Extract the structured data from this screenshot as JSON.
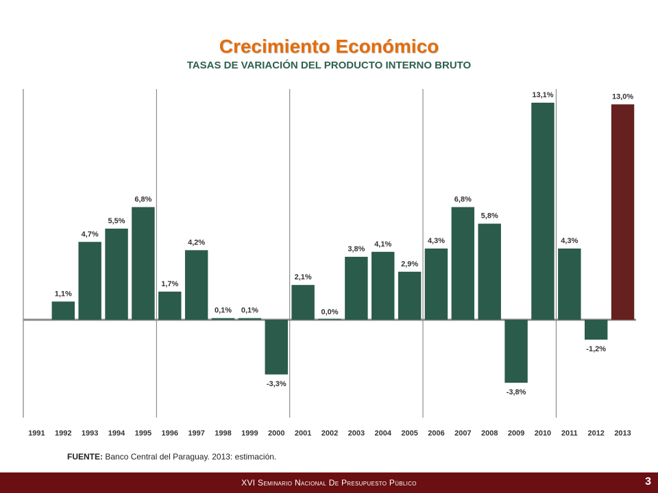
{
  "header": {
    "title": "Crecimiento Económico",
    "subtitle": "TASAS DE VARIACIÓN DEL PRODUCTO INTERNO BRUTO"
  },
  "source": {
    "label": "FUENTE:",
    "text": "Banco Central del Paraguay. 2013: estimación."
  },
  "footer": {
    "text": "XVI Seminario Nacional De Presupuesto Público",
    "page_number": "3"
  },
  "colors": {
    "bar": "#2b5b4b",
    "bar_estimate": "#65201f",
    "title": "#e46c0a",
    "subtitle": "#2e5f4e",
    "footer_bg": "#6b0f12"
  },
  "chart_data": {
    "type": "bar",
    "categories": [
      "1991",
      "1992",
      "1993",
      "1994",
      "1995",
      "1996",
      "1997",
      "1998",
      "1999",
      "2000",
      "2001",
      "2002",
      "2003",
      "2004",
      "2005",
      "2006",
      "2007",
      "2008",
      "2009",
      "2010",
      "2011",
      "2012",
      "2013"
    ],
    "values": [
      null,
      1.1,
      4.7,
      5.5,
      6.8,
      1.7,
      4.2,
      0.1,
      0.1,
      -3.3,
      2.1,
      0.0,
      3.8,
      4.1,
      2.9,
      4.3,
      6.8,
      5.8,
      -3.8,
      13.1,
      4.3,
      -1.2,
      13.0
    ],
    "labels": [
      "",
      "1,1%",
      "4,7%",
      "5,5%",
      "6,8%",
      "1,7%",
      "4,2%",
      "0,1%",
      "0,1%",
      "-3,3%",
      "2,1%",
      "0,0%",
      "3,8%",
      "4,1%",
      "2,9%",
      "4,3%",
      "6,8%",
      "5,8%",
      "-3,8%",
      "13,1%",
      "4,3%",
      "-1,2%",
      "13,0%"
    ],
    "estimate_index": 22,
    "ylim": [
      -6,
      14
    ],
    "period_dividers_after": [
      "1995",
      "2000",
      "2005",
      "2010"
    ],
    "grid": false
  }
}
